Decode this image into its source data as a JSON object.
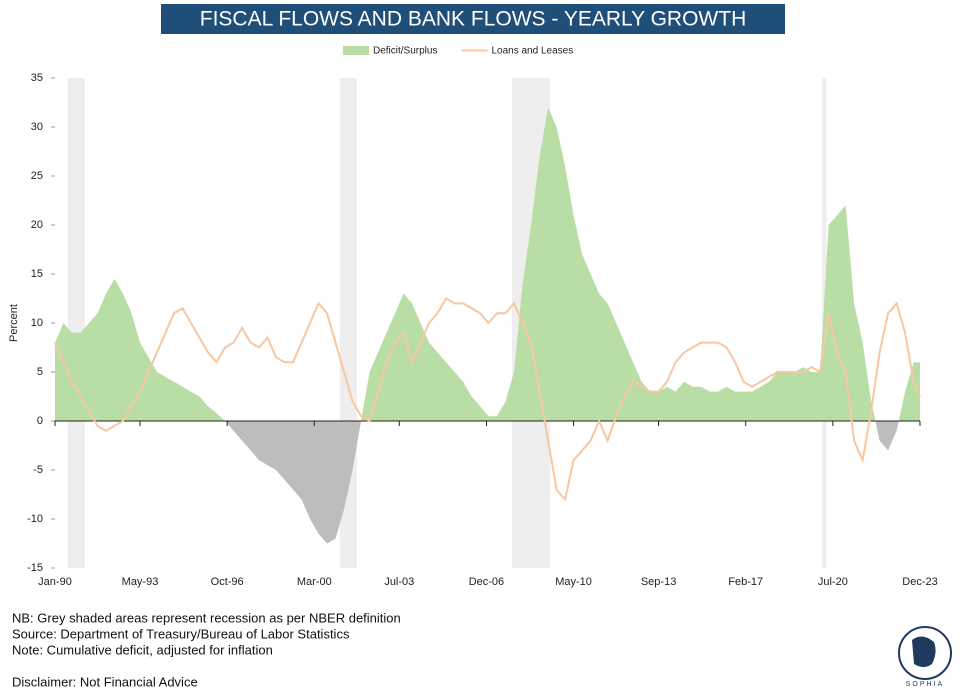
{
  "chart_data": {
    "type": "area-line",
    "title": "FISCAL FLOWS AND BANK FLOWS - YEARLY GROWTH",
    "y_label": "Percent",
    "ylim": [
      -15,
      35
    ],
    "yticks": [
      -15,
      -10,
      -5,
      0,
      5,
      10,
      15,
      20,
      25,
      30,
      35
    ],
    "xlim": [
      "Jan-90",
      "Dec-23"
    ],
    "xticks": [
      "Jan-90",
      "May-93",
      "Oct-96",
      "Mar-00",
      "Jul-03",
      "Dec-06",
      "May-10",
      "Sep-13",
      "Feb-17",
      "Jul-20",
      "Dec-23"
    ],
    "recessions": [
      [
        "Jul-90",
        "Mar-91"
      ],
      [
        "Mar-01",
        "Nov-01"
      ],
      [
        "Dec-07",
        "Jun-09"
      ],
      [
        "Feb-20",
        "Apr-20"
      ]
    ],
    "recession_color": "#eeeeee",
    "x": [
      "Jan-90",
      "May-90",
      "Sep-90",
      "Jan-91",
      "May-91",
      "Sep-91",
      "Jan-92",
      "May-92",
      "Sep-92",
      "Jan-93",
      "May-93",
      "Sep-93",
      "Jan-94",
      "May-94",
      "Sep-94",
      "Jan-95",
      "May-95",
      "Sep-95",
      "Jan-96",
      "May-96",
      "Sep-96",
      "Jan-97",
      "May-97",
      "Sep-97",
      "Jan-98",
      "May-98",
      "Sep-98",
      "Jan-99",
      "May-99",
      "Sep-99",
      "Jan-00",
      "May-00",
      "Sep-00",
      "Jan-01",
      "May-01",
      "Sep-01",
      "Jan-02",
      "May-02",
      "Sep-02",
      "Jan-03",
      "May-03",
      "Sep-03",
      "Jan-04",
      "May-04",
      "Sep-04",
      "Jan-05",
      "May-05",
      "Sep-05",
      "Jan-06",
      "May-06",
      "Sep-06",
      "Jan-07",
      "May-07",
      "Sep-07",
      "Jan-08",
      "May-08",
      "Sep-08",
      "Jan-09",
      "May-09",
      "Sep-09",
      "Jan-10",
      "May-10",
      "Sep-10",
      "Jan-11",
      "May-11",
      "Sep-11",
      "Jan-12",
      "May-12",
      "Sep-12",
      "Jan-13",
      "May-13",
      "Sep-13",
      "Jan-14",
      "May-14",
      "Sep-14",
      "Jan-15",
      "May-15",
      "Sep-15",
      "Jan-16",
      "May-16",
      "Sep-16",
      "Jan-17",
      "May-17",
      "Sep-17",
      "Jan-18",
      "May-18",
      "Sep-18",
      "Jan-19",
      "May-19",
      "Sep-19",
      "Jan-20",
      "May-20",
      "Sep-20",
      "Jan-21",
      "May-21",
      "Sep-21",
      "Jan-22",
      "May-22",
      "Sep-22",
      "Jan-23",
      "May-23",
      "Sep-23",
      "Dec-23"
    ],
    "series": [
      {
        "name": "Deficit/Surplus",
        "kind": "area",
        "color": "#b9dea5",
        "negative_color": "#bdbdbd",
        "values": [
          8,
          10,
          9,
          9,
          10,
          11,
          13,
          14.5,
          13,
          11,
          8,
          6.5,
          5,
          4.5,
          4,
          3.5,
          3,
          2.5,
          1.5,
          0.8,
          0,
          -1,
          -2,
          -3,
          -4,
          -4.5,
          -5,
          -6,
          -7,
          -8,
          -10,
          -11.5,
          -12.5,
          -12,
          -9,
          -5,
          0,
          5,
          7,
          9,
          11,
          13,
          12,
          10,
          8,
          7,
          6,
          5,
          4,
          2.5,
          1.5,
          0.5,
          0.5,
          2,
          5,
          14,
          20,
          27,
          32,
          30,
          26,
          21,
          17,
          15,
          13,
          12,
          10,
          8,
          6,
          4,
          3,
          3,
          3.5,
          3,
          4,
          3.5,
          3.5,
          3,
          3,
          3.5,
          3,
          3,
          3,
          3.5,
          4,
          5,
          5,
          5,
          5.5,
          5,
          5,
          20,
          21,
          22,
          12,
          8,
          2,
          -2,
          -3,
          -1,
          3,
          6,
          6
        ]
      },
      {
        "name": "Loans and Leases",
        "kind": "line",
        "color": "#f8c6a0",
        "values": [
          8,
          6,
          4,
          2.5,
          1,
          -0.5,
          -1,
          -0.5,
          0,
          1.5,
          3,
          5,
          7,
          9,
          11,
          11.5,
          10,
          8.5,
          7,
          6,
          7.5,
          8,
          9.5,
          8,
          7.5,
          8.5,
          6.5,
          6,
          6,
          8,
          10,
          12,
          11,
          8,
          5,
          2,
          0.5,
          0,
          3,
          6,
          8,
          9,
          6,
          8,
          10,
          11,
          12.5,
          12,
          12,
          11.5,
          11,
          10,
          11,
          11,
          12,
          10,
          8,
          3,
          -2,
          -7,
          -8,
          -4,
          -3,
          -2,
          0,
          -2,
          0.5,
          2.5,
          4,
          3.5,
          3,
          3,
          4,
          6,
          7,
          7.5,
          8,
          8,
          8,
          7.5,
          6,
          4,
          3.5,
          4,
          4.5,
          5,
          5,
          5,
          5,
          5.5,
          5,
          11,
          7,
          5,
          -2,
          -4,
          1,
          7,
          11,
          12,
          9,
          4,
          2.5
        ]
      }
    ],
    "notes": [
      "NB: Grey shaded areas represent recession as per NBER definition",
      "Source: Department of Treasury/Bureau of Labor Statistics",
      "Note: Cumulative deficit, adjusted for inflation"
    ],
    "disclaimer": "Disclaimer: Not Financial Advice",
    "logo_text": "SOPHIA"
  }
}
